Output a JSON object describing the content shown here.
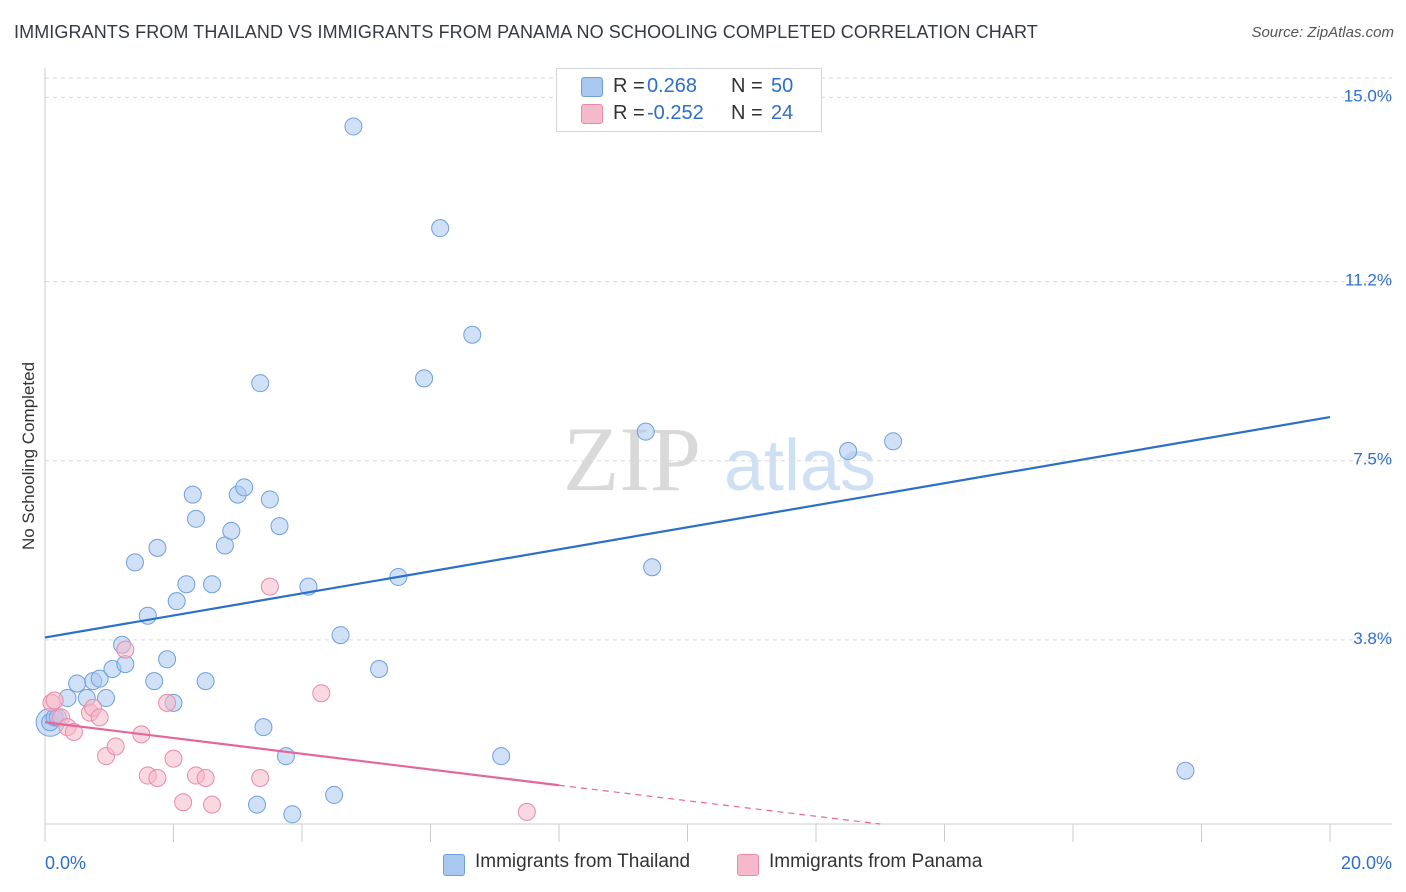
{
  "title": "IMMIGRANTS FROM THAILAND VS IMMIGRANTS FROM PANAMA NO SCHOOLING COMPLETED CORRELATION CHART",
  "source": "Source: ZipAtlas.com",
  "watermark": {
    "zip": "ZIP",
    "atlas": "atlas"
  },
  "legend": {
    "r_label": "R =",
    "n_label": "N =",
    "series": [
      {
        "name": "Immigrants from Thailand",
        "r": "0.268",
        "n": "50"
      },
      {
        "name": "Immigrants from Panama",
        "r": "-0.252",
        "n": "24"
      }
    ]
  },
  "colors": {
    "thailand_fill": "#a9c8f0",
    "thailand_stroke": "#6f9fdc",
    "thailand_line": "#2c6fc9",
    "panama_fill": "#f6b8cb",
    "panama_stroke": "#e98aa9",
    "panama_line": "#e4679a",
    "axis_label": "#2c6fc9",
    "grid": "#d9d9d9"
  },
  "chart_data": {
    "type": "scatter",
    "title": "IMMIGRANTS FROM THAILAND VS IMMIGRANTS FROM PANAMA NO SCHOOLING COMPLETED CORRELATION CHART",
    "xlabel": "",
    "ylabel": "No Schooling Completed",
    "xlim": [
      0,
      20
    ],
    "ylim": [
      0,
      15.4
    ],
    "x_tick_labels": [
      "0.0%",
      "20.0%"
    ],
    "y_ticks": [
      3.8,
      7.5,
      11.2,
      15.0
    ],
    "y_tick_labels": [
      "3.8%",
      "7.5%",
      "11.2%",
      "15.0%"
    ],
    "legend_position": "top-center",
    "grid": true,
    "series": [
      {
        "name": "Immigrants from Thailand",
        "points": [
          [
            0.08,
            2.1
          ],
          [
            0.15,
            2.2
          ],
          [
            0.2,
            2.2
          ],
          [
            0.35,
            2.6
          ],
          [
            0.5,
            2.9
          ],
          [
            0.65,
            2.6
          ],
          [
            0.75,
            2.95
          ],
          [
            0.85,
            3.0
          ],
          [
            0.95,
            2.6
          ],
          [
            1.05,
            3.2
          ],
          [
            1.2,
            3.7
          ],
          [
            1.25,
            3.3
          ],
          [
            1.4,
            5.4
          ],
          [
            1.6,
            4.3
          ],
          [
            1.7,
            2.95
          ],
          [
            1.75,
            5.7
          ],
          [
            1.9,
            3.4
          ],
          [
            2.0,
            2.5
          ],
          [
            2.05,
            4.6
          ],
          [
            2.2,
            4.95
          ],
          [
            2.3,
            6.8
          ],
          [
            2.35,
            6.3
          ],
          [
            2.5,
            2.95
          ],
          [
            2.6,
            4.95
          ],
          [
            2.8,
            5.75
          ],
          [
            2.9,
            6.05
          ],
          [
            3.0,
            6.8
          ],
          [
            3.1,
            6.95
          ],
          [
            3.3,
            0.4
          ],
          [
            3.35,
            9.1
          ],
          [
            3.4,
            2.0
          ],
          [
            3.5,
            6.7
          ],
          [
            3.65,
            6.15
          ],
          [
            3.75,
            1.4
          ],
          [
            3.85,
            0.2
          ],
          [
            4.1,
            4.9
          ],
          [
            4.5,
            0.6
          ],
          [
            4.6,
            3.9
          ],
          [
            4.8,
            14.4
          ],
          [
            5.2,
            3.2
          ],
          [
            5.5,
            5.1
          ],
          [
            5.9,
            9.2
          ],
          [
            6.15,
            12.3
          ],
          [
            6.65,
            10.1
          ],
          [
            7.1,
            1.4
          ],
          [
            9.35,
            8.1
          ],
          [
            9.45,
            5.3
          ],
          [
            12.5,
            7.7
          ],
          [
            13.2,
            7.9
          ],
          [
            17.75,
            1.1
          ]
        ],
        "trend": {
          "x": [
            0,
            20
          ],
          "y": [
            3.85,
            8.4
          ]
        }
      },
      {
        "name": "Immigrants from Panama",
        "points": [
          [
            0.1,
            2.5
          ],
          [
            0.15,
            2.55
          ],
          [
            0.25,
            2.2
          ],
          [
            0.35,
            2.0
          ],
          [
            0.45,
            1.9
          ],
          [
            0.7,
            2.3
          ],
          [
            0.75,
            2.4
          ],
          [
            0.85,
            2.2
          ],
          [
            0.95,
            1.4
          ],
          [
            1.1,
            1.6
          ],
          [
            1.25,
            3.6
          ],
          [
            1.5,
            1.85
          ],
          [
            1.6,
            1.0
          ],
          [
            1.75,
            0.95
          ],
          [
            1.9,
            2.5
          ],
          [
            2.0,
            1.35
          ],
          [
            2.15,
            0.45
          ],
          [
            2.35,
            1.0
          ],
          [
            2.5,
            0.95
          ],
          [
            2.6,
            0.4
          ],
          [
            3.35,
            0.95
          ],
          [
            3.5,
            4.9
          ],
          [
            4.3,
            2.7
          ],
          [
            7.5,
            0.25
          ]
        ],
        "trend": {
          "x": [
            0,
            8
          ],
          "y": [
            2.1,
            0.8
          ]
        },
        "trend_extension": {
          "x": [
            8,
            13
          ],
          "y": [
            0.8,
            0.0
          ]
        }
      }
    ]
  }
}
